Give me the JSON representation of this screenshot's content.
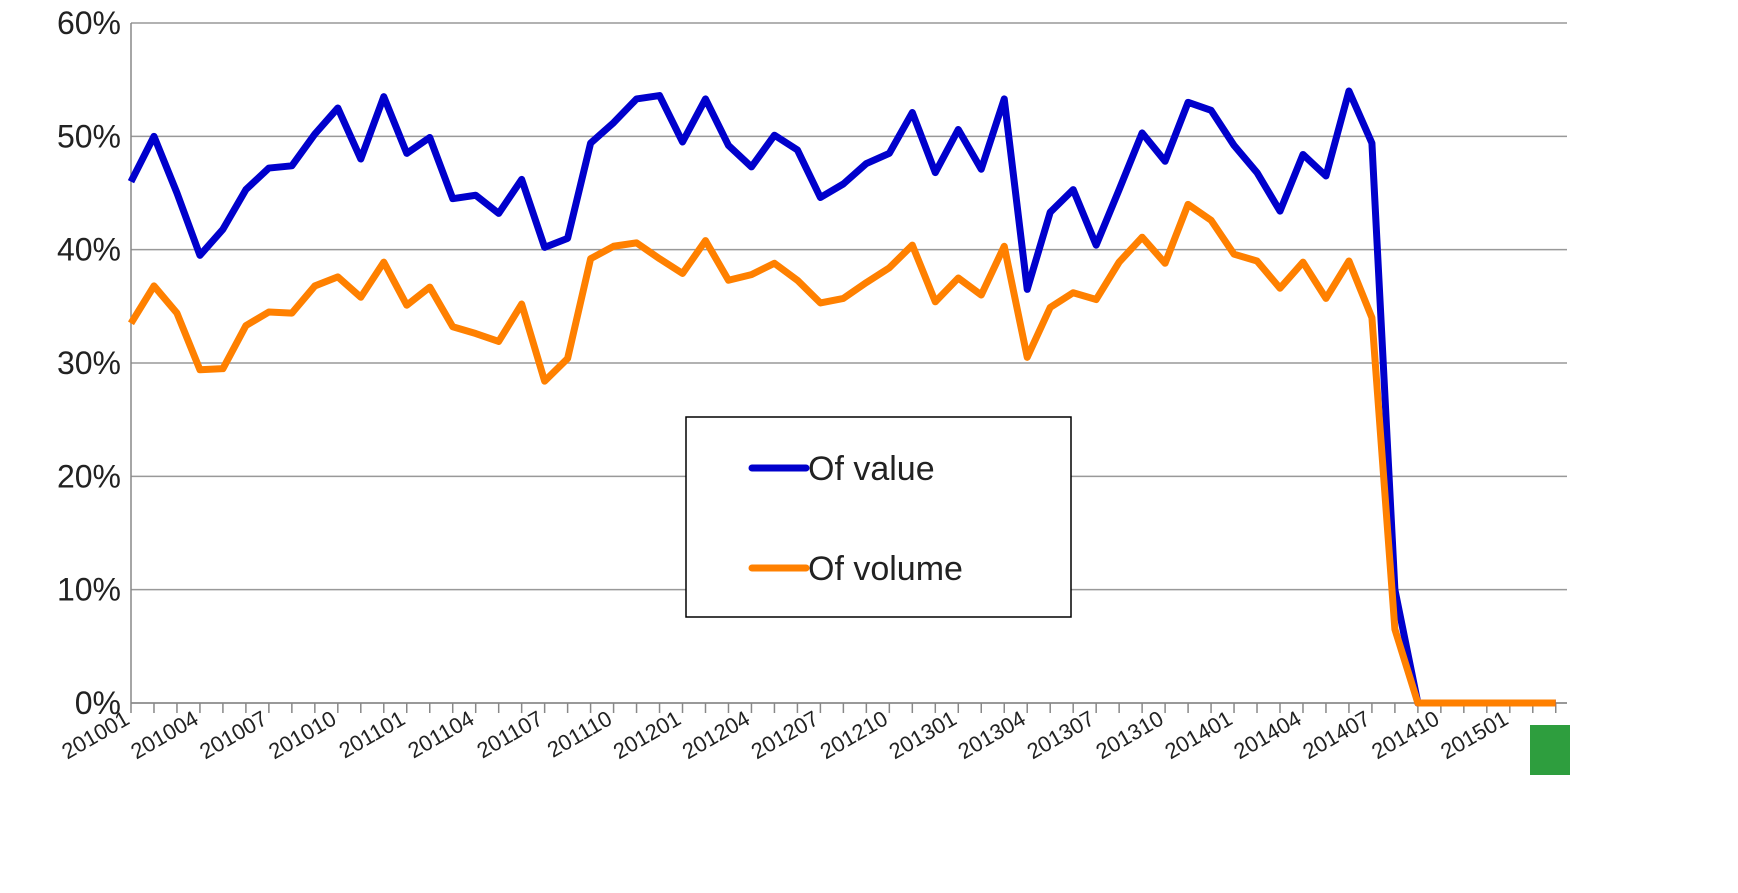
{
  "chart_data": {
    "type": "line",
    "categories": [
      "201001",
      null,
      null,
      "201004",
      null,
      null,
      "201007",
      null,
      null,
      "201010",
      null,
      null,
      "201101",
      null,
      null,
      "201104",
      null,
      null,
      "201107",
      null,
      null,
      "201110",
      null,
      null,
      "201201",
      null,
      null,
      "201204",
      null,
      null,
      "201207",
      null,
      null,
      "201210",
      null,
      null,
      "201301",
      null,
      null,
      "201304",
      null,
      null,
      "201307",
      null,
      null,
      "201310",
      null,
      null,
      "201401",
      null,
      null,
      "201404",
      null,
      null,
      "201407",
      null,
      null,
      "201410",
      null,
      null,
      "201501",
      null,
      null
    ],
    "series": [
      {
        "name": "Of value",
        "color": "#0000cc",
        "values": [
          46,
          50,
          45,
          39.5,
          41.8,
          45.3,
          47.2,
          47.4,
          50.2,
          52.5,
          48,
          53.5,
          48.5,
          49.9,
          44.5,
          44.8,
          43.2,
          46.2,
          40.2,
          41,
          49.4,
          51.2,
          53.3,
          53.6,
          49.5,
          53.3,
          49.2,
          47.3,
          50.1,
          48.8,
          44.6,
          45.8,
          47.6,
          48.5,
          52.1,
          46.8,
          50.6,
          47.1,
          53.3,
          36.5,
          43.3,
          45.3,
          40.4,
          45.3,
          50.3,
          47.8,
          53,
          52.3,
          49.2,
          46.8,
          43.4,
          48.4,
          46.5,
          54,
          49.4,
          10,
          0,
          0,
          0,
          0,
          0,
          0,
          0
        ]
      },
      {
        "name": "Of volume",
        "color": "#ff8000",
        "values": [
          33.5,
          36.8,
          34.4,
          29.4,
          29.5,
          33.3,
          34.5,
          34.4,
          36.8,
          37.6,
          35.8,
          38.9,
          35.1,
          36.7,
          33.2,
          32.6,
          31.9,
          35.2,
          28.4,
          30.4,
          39.2,
          40.3,
          40.6,
          39.2,
          37.9,
          40.8,
          37.3,
          37.8,
          38.8,
          37.3,
          35.3,
          35.7,
          37.1,
          38.4,
          40.4,
          35.4,
          37.5,
          36,
          40.3,
          30.5,
          34.9,
          36.2,
          35.6,
          38.9,
          41.1,
          38.8,
          44,
          42.6,
          39.6,
          39,
          36.6,
          38.9,
          35.7,
          39,
          34,
          6.5,
          0,
          0,
          0,
          0,
          0,
          0,
          0
        ]
      }
    ],
    "ylim": [
      0,
      60
    ],
    "yticks": [
      {
        "value": 0,
        "label": "0%"
      },
      {
        "value": 10,
        "label": "10%"
      },
      {
        "value": 20,
        "label": "20%"
      },
      {
        "value": 30,
        "label": "30%"
      },
      {
        "value": 40,
        "label": "40%"
      },
      {
        "value": 50,
        "label": "50%"
      },
      {
        "value": 60,
        "label": "60%"
      }
    ],
    "grid": true
  }
}
